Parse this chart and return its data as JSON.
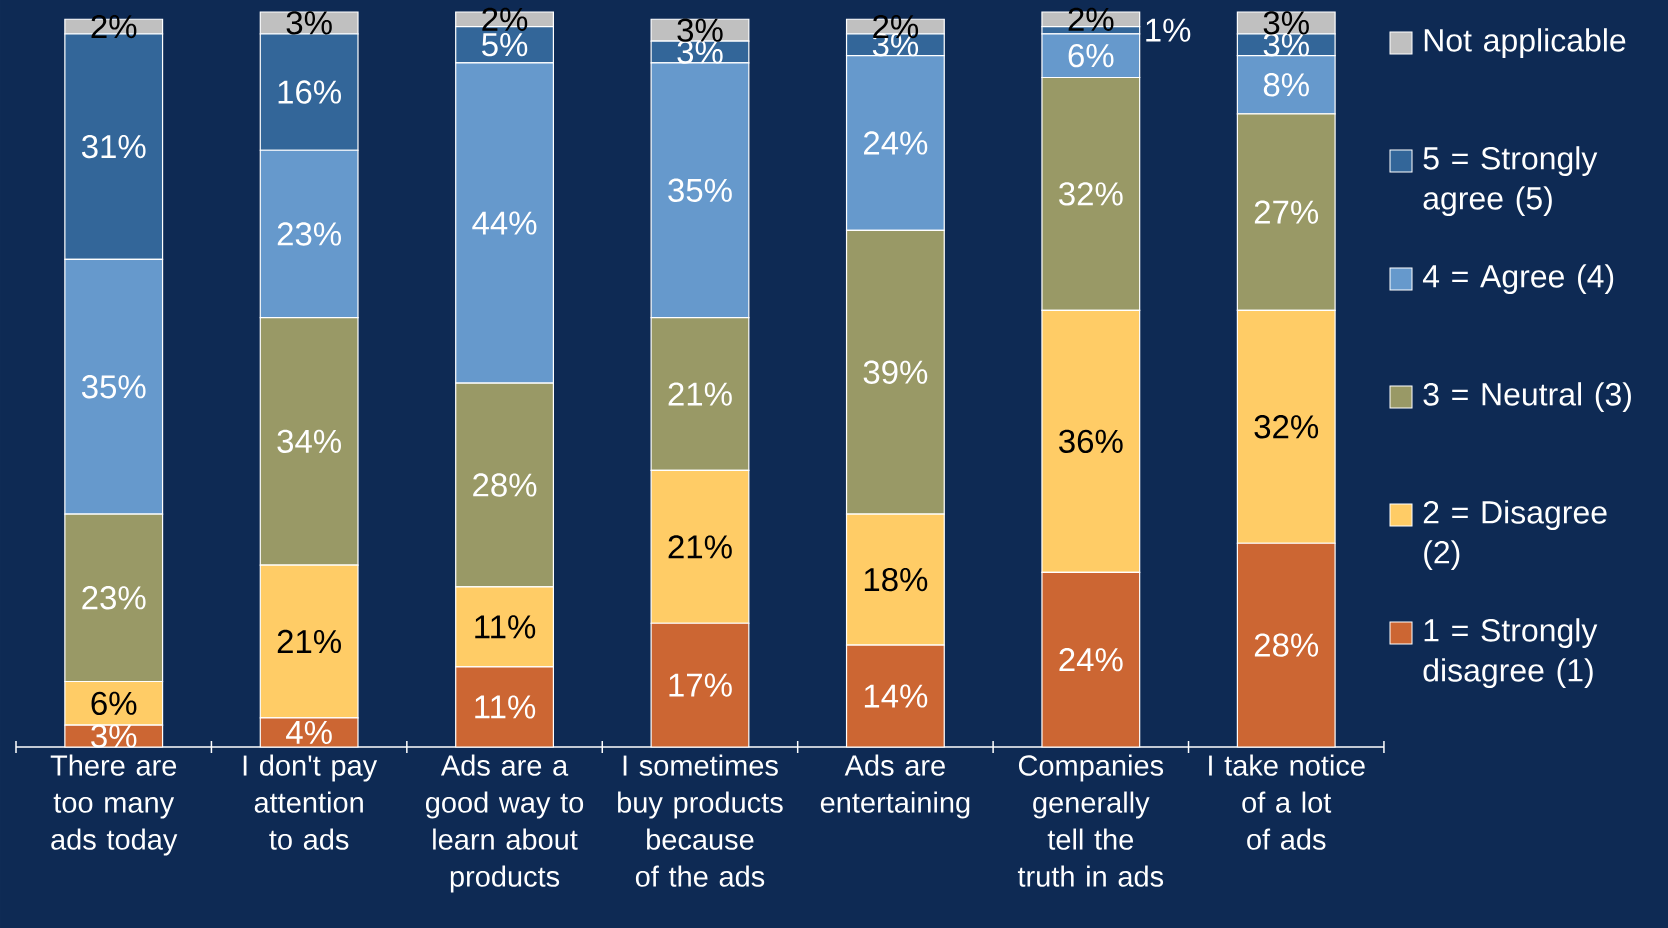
{
  "chart_data": {
    "type": "bar",
    "stacked": true,
    "legend": "right",
    "data_labels": false,
    "categories": [
      "There are too many ads today",
      "I don't pay attention to ads",
      "Ads are a good way to learn about products",
      "I sometimes buy products because of the ads",
      "Ads are entertaining",
      "Companies generally tell the truth in ads",
      "I take notice of a lot of ads"
    ],
    "series": [
      {
        "name": "1 = Strongly disagree (1)",
        "color": "#cc6633",
        "values": [
          3,
          4,
          11,
          17,
          14,
          24,
          28
        ],
        "value_labels": [
          "3%",
          "4%",
          "11%",
          "17%",
          "14%",
          "24%",
          "28%"
        ]
      },
      {
        "name": "2 = Disagree (2)",
        "color": "#ffcc66",
        "values": [
          6,
          21,
          11,
          21,
          18,
          36,
          32
        ],
        "value_labels": [
          "6%",
          "21%",
          "11%",
          "21%",
          "18%",
          "36%",
          "32%"
        ]
      },
      {
        "name": "3 = Neutral (3)",
        "color": "#999966",
        "values": [
          23,
          34,
          28,
          21,
          39,
          32,
          27
        ],
        "value_labels": [
          "23%",
          "34%",
          "28%",
          "21%",
          "39%",
          "32%",
          "27%"
        ]
      },
      {
        "name": "4 = Agree (4)",
        "color": "#6699cc",
        "values": [
          35,
          23,
          44,
          35,
          24,
          6,
          8
        ],
        "value_labels": [
          "35%",
          "23%",
          "44%",
          "35%",
          "24%",
          "6%",
          "8%"
        ]
      },
      {
        "name": "5 = Strongly agree (5)",
        "color": "#336699",
        "values": [
          31,
          16,
          5,
          3,
          3,
          1,
          3
        ],
        "value_labels": [
          "31%",
          "16%",
          "5%",
          "3%",
          "3%",
          "1%",
          "3%"
        ]
      },
      {
        "name": "Not applicable",
        "color": "#c0c0c0",
        "values": [
          2,
          3,
          2,
          3,
          2,
          2,
          3
        ],
        "value_labels": [
          "2%",
          "3%",
          "2%",
          "3%",
          "2%",
          "2%",
          "3%"
        ]
      }
    ]
  }
}
